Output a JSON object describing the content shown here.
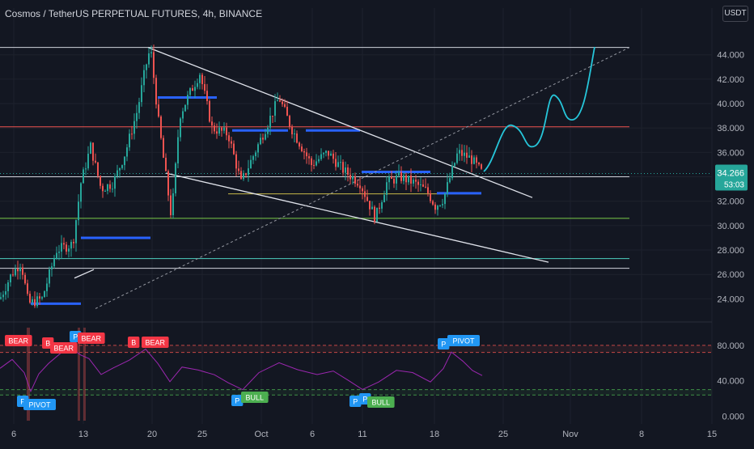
{
  "header": {
    "title": "Cosmos / TetherUS PERPETUAL FUTURES, 4h, BINANCE",
    "currency_button": "USDT"
  },
  "price_axis": {
    "ticks": [
      "44.000",
      "42.000",
      "40.000",
      "38.000",
      "36.000",
      "34.000",
      "32.000",
      "30.000",
      "28.000",
      "26.000",
      "24.000"
    ],
    "current_price": "34.266",
    "countdown": "53:03"
  },
  "indicator_axis": {
    "ticks": [
      "80.000",
      "40.000",
      "0.000"
    ]
  },
  "time_axis": {
    "ticks": [
      "6",
      "13",
      "20",
      "25",
      "Oct",
      "6",
      "11",
      "18",
      "25",
      "Nov",
      "8",
      "15"
    ]
  },
  "labels": {
    "bear": "BEAR",
    "bull": "BULL",
    "pivot": "PIVOT",
    "p": "P",
    "b": "B"
  },
  "colors": {
    "background": "#131722",
    "candle_up": "#26a69a",
    "candle_down": "#ef5350",
    "price_badge": "#26a69a",
    "oscillator": "#9c27b0",
    "forecast": "#26c6da",
    "bear_label": "#f23645",
    "bull_label": "#4caf50",
    "pivot_label": "#2196f3"
  },
  "chart_data": {
    "type": "candlestick",
    "title": "Cosmos / TetherUS PERPETUAL FUTURES, 4h, BINANCE",
    "price_range": [
      22.5,
      46.5
    ],
    "indicator_range": [
      -5,
      100
    ],
    "last_price": 34.266,
    "x_ticks": [
      "6",
      "13",
      "20",
      "25",
      "Oct",
      "6",
      "11",
      "18",
      "25",
      "Nov",
      "8",
      "15"
    ],
    "horizontal_levels": [
      {
        "price": 44.6,
        "color": "white"
      },
      {
        "price": 38.1,
        "color": "red"
      },
      {
        "price": 34.0,
        "color": "white"
      },
      {
        "price": 32.6,
        "color": "yellow"
      },
      {
        "price": 30.6,
        "color": "green"
      },
      {
        "price": 27.3,
        "color": "teal"
      },
      {
        "price": 26.5,
        "color": "white"
      }
    ],
    "oscillator_bands": [
      80,
      72,
      30,
      24
    ]
  }
}
